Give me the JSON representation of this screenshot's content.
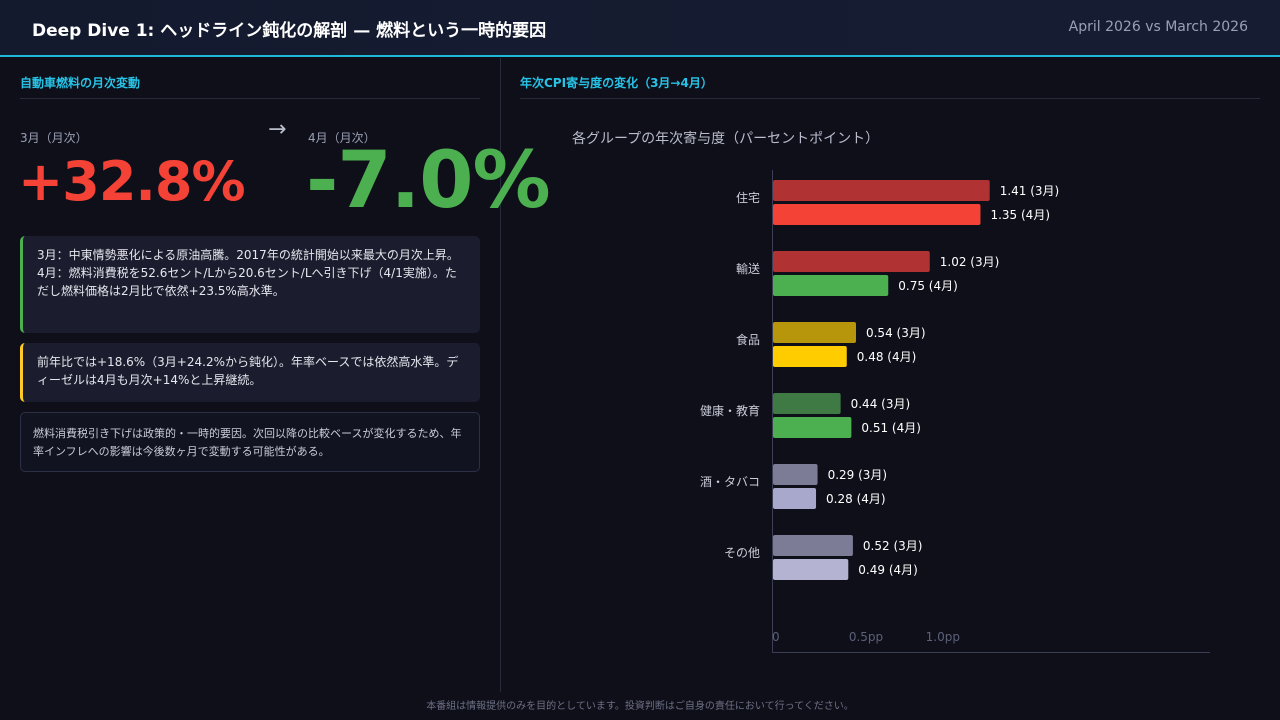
{
  "header": {
    "title": "Deep Dive 1: ヘッドライン鈍化の解剖 — 燃料という一時的要因",
    "period": "April 2026 vs March 2026"
  },
  "left": {
    "section_title": "自動車燃料の月次変動",
    "kpi": {
      "march_label": "3月（月次）",
      "march_value": "+32.8%",
      "arrow": "→",
      "april_label": "4月（月次）",
      "april_value": "-7.0%"
    },
    "note_green": {
      "line1": "3月：中東情勢悪化による原油高騰。2017年の統計開始以来最大の月次上昇。",
      "line2": "4月：燃料消費税を52.6セント/Lから20.6セント/Lへ引き下げ（4/1実施）。ただし燃料価格は2月比で依然+23.5%高水準。"
    },
    "note_yellow": "前年比では+18.6%（3月+24.2%から鈍化）。年率ベースでは依然高水準。ディーゼルは4月も月次+14%と上昇継続。",
    "note_plain": "燃料消費税引き下げは政策的・一時的要因。次回以降の比較ベースが変化するため、年率インフレへの影響は今後数ヶ月で変動する可能性がある。"
  },
  "right": {
    "section_title": "年次CPI寄与度の変化（3月→4月）"
  },
  "chart_data": {
    "type": "bar",
    "orientation": "horizontal",
    "title": "各グループの年次寄与度（パーセントポイント）",
    "categories": [
      "住宅",
      "輸送",
      "食品",
      "健康・教育",
      "酒・タバコ",
      "その他"
    ],
    "series": [
      {
        "name": "3月",
        "values": [
          1.41,
          1.02,
          0.54,
          0.44,
          0.29,
          0.52
        ]
      },
      {
        "name": "4月",
        "values": [
          1.35,
          0.75,
          0.48,
          0.51,
          0.28,
          0.49
        ]
      }
    ],
    "bar_colors": {
      "3月": [
        "#b03232",
        "#b03232",
        "#b8960c",
        "#3f7a45",
        "#7c7c96",
        "#7c7c96"
      ],
      "4月": [
        "#f44336",
        "#4caf50",
        "#ffcc00",
        "#4caf50",
        "#a8a8cc",
        "#b4b4d2"
      ]
    },
    "value_label_format": "{v} ({s})",
    "x_ticks": [
      {
        "value": 0,
        "label": "0"
      },
      {
        "value": 0.5,
        "label": "0.5pp"
      },
      {
        "value": 1.0,
        "label": "1.0pp"
      }
    ],
    "xlim": [
      0,
      2.85
    ],
    "grid": false
  },
  "footer": "本番組は情報提供のみを目的としています。投資判断はご自身の責任において行ってください。"
}
